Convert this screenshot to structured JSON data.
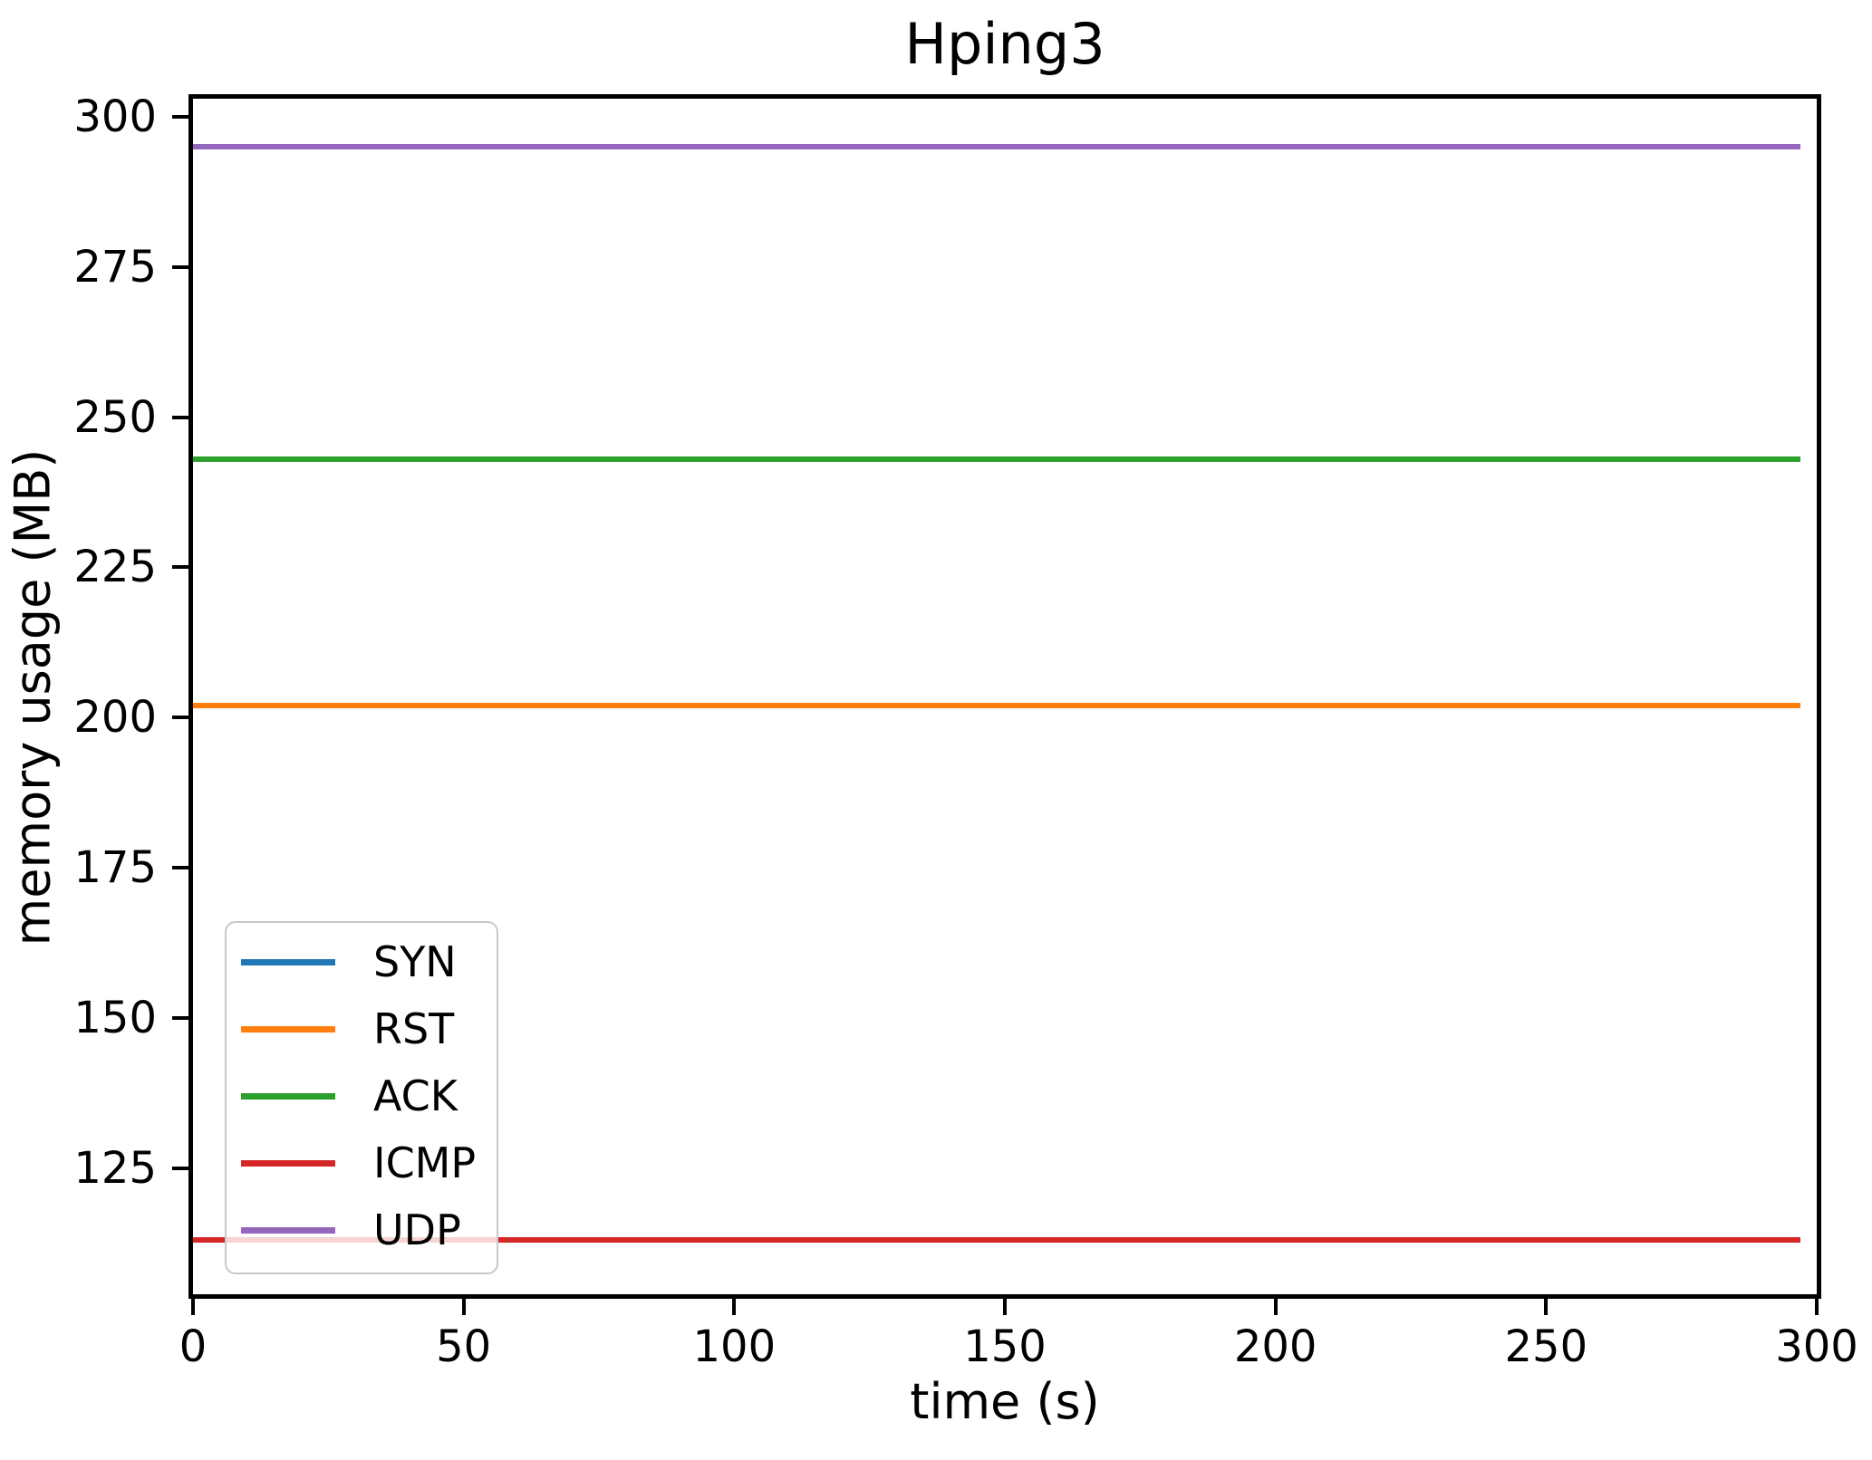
{
  "chart_data": {
    "type": "line",
    "title": "Hping3",
    "xlabel": "time (s)",
    "ylabel": "memory usage (MB)",
    "xlim": [
      0,
      300
    ],
    "ylim": [
      104,
      303
    ],
    "x_ticks": [
      0,
      50,
      100,
      150,
      200,
      250,
      300
    ],
    "y_ticks": [
      125,
      150,
      175,
      200,
      225,
      250,
      275,
      300
    ],
    "grid": false,
    "legend": {
      "position": "lower left",
      "entries": [
        "SYN",
        "RST",
        "ACK",
        "ICMP",
        "UDP"
      ]
    },
    "x_data_span": [
      0,
      297
    ],
    "series": [
      {
        "name": "SYN",
        "color": "#1f77b4",
        "value": 202,
        "note": "constant line, fully hidden beneath RST"
      },
      {
        "name": "RST",
        "color": "#ff7f0e",
        "value": 202
      },
      {
        "name": "ACK",
        "color": "#2ca02c",
        "value": 243
      },
      {
        "name": "ICMP",
        "color": "#d62728",
        "value": 113
      },
      {
        "name": "UDP",
        "color": "#9467bd",
        "value": 295
      }
    ]
  }
}
